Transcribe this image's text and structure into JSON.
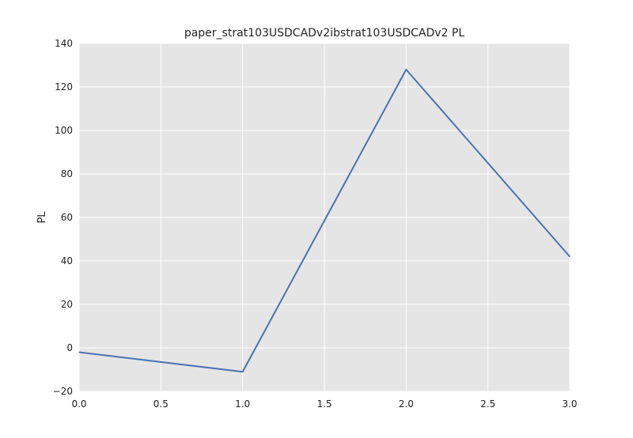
{
  "chart_data": {
    "type": "line",
    "title": "paper_strat103USDCADv2ibstrat103USDCADv2 PL",
    "xlabel": "",
    "ylabel": "PL",
    "xlim": [
      0.0,
      3.0
    ],
    "ylim": [
      -20,
      140
    ],
    "x_ticks": [
      0.0,
      0.5,
      1.0,
      1.5,
      2.0,
      2.5,
      3.0
    ],
    "x_tick_labels": [
      "0.0",
      "0.5",
      "1.0",
      "1.5",
      "2.0",
      "2.5",
      "3.0"
    ],
    "y_ticks": [
      -20,
      0,
      20,
      40,
      60,
      80,
      100,
      120,
      140
    ],
    "y_tick_labels": [
      "−20",
      "0",
      "20",
      "40",
      "60",
      "80",
      "100",
      "120",
      "140"
    ],
    "grid": true,
    "series": [
      {
        "x": [
          0,
          1,
          2,
          3
        ],
        "values": [
          -2,
          -11,
          128,
          42
        ]
      }
    ],
    "colors": {
      "plot_background": "#e5e5e5",
      "grid": "#ffffff",
      "line": "#4c72b0"
    }
  }
}
